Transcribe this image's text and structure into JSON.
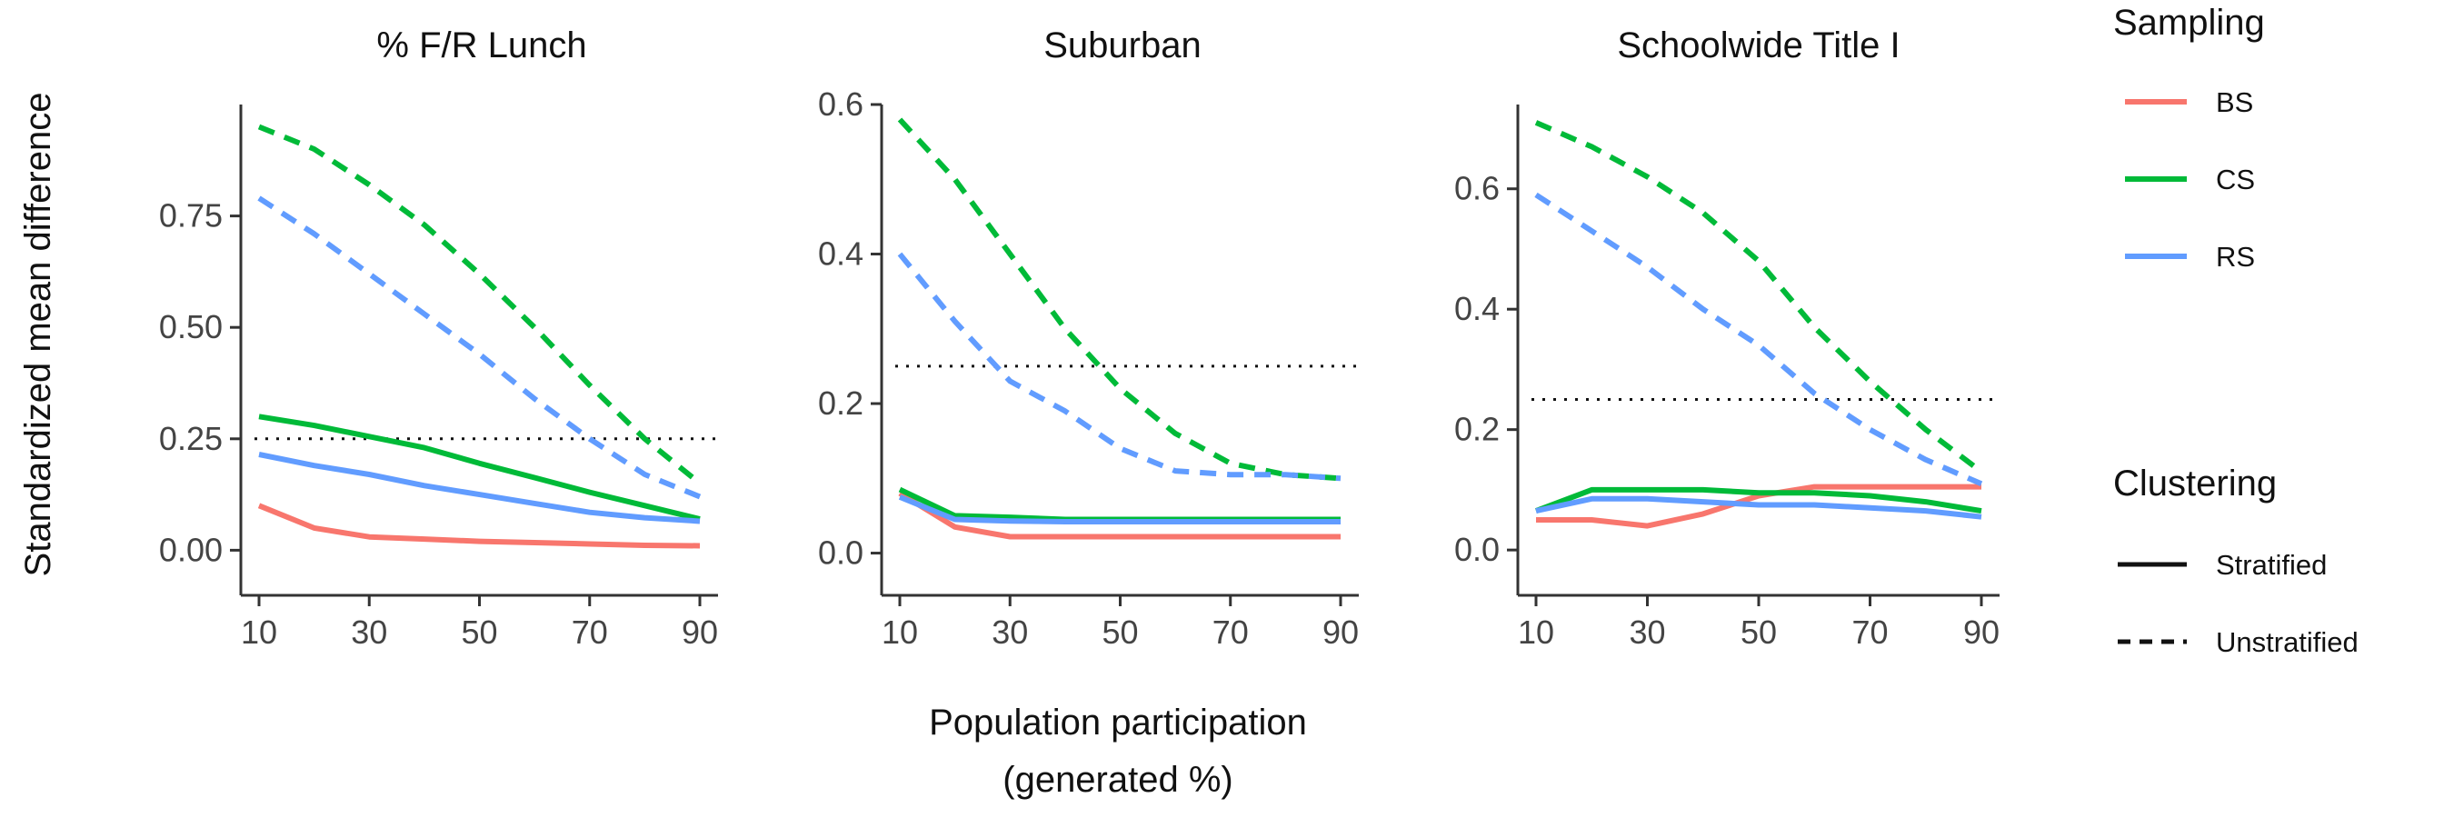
{
  "chart_data": {
    "type": "line",
    "ylabel": "Standardized mean difference",
    "xlabel_lines": [
      "Population participation",
      "(generated %)"
    ],
    "x": [
      10,
      20,
      30,
      40,
      50,
      60,
      70,
      80,
      90
    ],
    "x_ticks": [
      "10",
      "30",
      "50",
      "70",
      "90"
    ],
    "reference_line": 0.25,
    "legends": {
      "sampling": {
        "title": "Sampling",
        "items": [
          {
            "label": "BS",
            "color": "#F8766D"
          },
          {
            "label": "CS",
            "color": "#00BA38"
          },
          {
            "label": "RS",
            "color": "#619CFF"
          }
        ]
      },
      "clustering": {
        "title": "Clustering",
        "items": [
          {
            "label": "Stratified",
            "linetype": "solid"
          },
          {
            "label": "Unstratified",
            "linetype": "dashed"
          }
        ]
      }
    },
    "panels": [
      {
        "title": "% F/R Lunch",
        "ylim": [
          -0.04,
          1.0
        ],
        "y_ticks": [
          "0.00",
          "0.25",
          "0.50",
          "0.75"
        ],
        "series": [
          {
            "sampling": "BS",
            "clustering": "Stratified",
            "values": [
              0.1,
              0.05,
              0.03,
              0.025,
              0.02,
              0.017,
              0.014,
              0.011,
              0.01
            ]
          },
          {
            "sampling": "CS",
            "clustering": "Stratified",
            "values": [
              0.3,
              0.28,
              0.255,
              0.23,
              0.195,
              0.163,
              0.13,
              0.1,
              0.07
            ]
          },
          {
            "sampling": "RS",
            "clustering": "Stratified",
            "values": [
              0.215,
              0.19,
              0.17,
              0.145,
              0.125,
              0.105,
              0.085,
              0.073,
              0.065
            ]
          },
          {
            "sampling": "CS",
            "clustering": "Unstratified",
            "values": [
              0.95,
              0.9,
              0.82,
              0.73,
              0.62,
              0.5,
              0.37,
              0.25,
              0.15
            ]
          },
          {
            "sampling": "RS",
            "clustering": "Unstratified",
            "values": [
              0.79,
              0.71,
              0.62,
              0.53,
              0.44,
              0.34,
              0.25,
              0.17,
              0.12
            ]
          }
        ]
      },
      {
        "title": "Suburban",
        "ylim": [
          -0.02,
          0.6
        ],
        "y_ticks": [
          "0.0",
          "0.2",
          "0.4",
          "0.6"
        ],
        "series": [
          {
            "sampling": "BS",
            "clustering": "Stratified",
            "values": [
              0.08,
              0.035,
              0.022,
              0.022,
              0.022,
              0.022,
              0.022,
              0.022,
              0.022
            ]
          },
          {
            "sampling": "CS",
            "clustering": "Stratified",
            "values": [
              0.085,
              0.05,
              0.048,
              0.045,
              0.045,
              0.045,
              0.045,
              0.045,
              0.045
            ]
          },
          {
            "sampling": "RS",
            "clustering": "Stratified",
            "values": [
              0.075,
              0.045,
              0.043,
              0.042,
              0.042,
              0.042,
              0.042,
              0.042,
              0.042
            ]
          },
          {
            "sampling": "CS",
            "clustering": "Unstratified",
            "values": [
              0.58,
              0.5,
              0.4,
              0.3,
              0.22,
              0.16,
              0.12,
              0.105,
              0.1
            ]
          },
          {
            "sampling": "RS",
            "clustering": "Unstratified",
            "values": [
              0.4,
              0.31,
              0.23,
              0.19,
              0.14,
              0.11,
              0.105,
              0.105,
              0.1
            ]
          }
        ]
      },
      {
        "title": "Schoolwide Title I",
        "ylim": [
          -0.03,
          0.74
        ],
        "y_ticks": [
          "0.0",
          "0.2",
          "0.4",
          "0.6"
        ],
        "series": [
          {
            "sampling": "BS",
            "clustering": "Stratified",
            "values": [
              0.05,
              0.05,
              0.04,
              0.06,
              0.09,
              0.105,
              0.105,
              0.105,
              0.105
            ]
          },
          {
            "sampling": "CS",
            "clustering": "Stratified",
            "values": [
              0.065,
              0.1,
              0.1,
              0.1,
              0.095,
              0.095,
              0.09,
              0.08,
              0.065
            ]
          },
          {
            "sampling": "RS",
            "clustering": "Stratified",
            "values": [
              0.065,
              0.085,
              0.085,
              0.08,
              0.075,
              0.075,
              0.07,
              0.065,
              0.055
            ]
          },
          {
            "sampling": "CS",
            "clustering": "Unstratified",
            "values": [
              0.71,
              0.67,
              0.62,
              0.56,
              0.48,
              0.37,
              0.28,
              0.2,
              0.13
            ]
          },
          {
            "sampling": "RS",
            "clustering": "Unstratified",
            "values": [
              0.59,
              0.53,
              0.47,
              0.4,
              0.34,
              0.26,
              0.2,
              0.15,
              0.11
            ]
          }
        ]
      }
    ]
  }
}
